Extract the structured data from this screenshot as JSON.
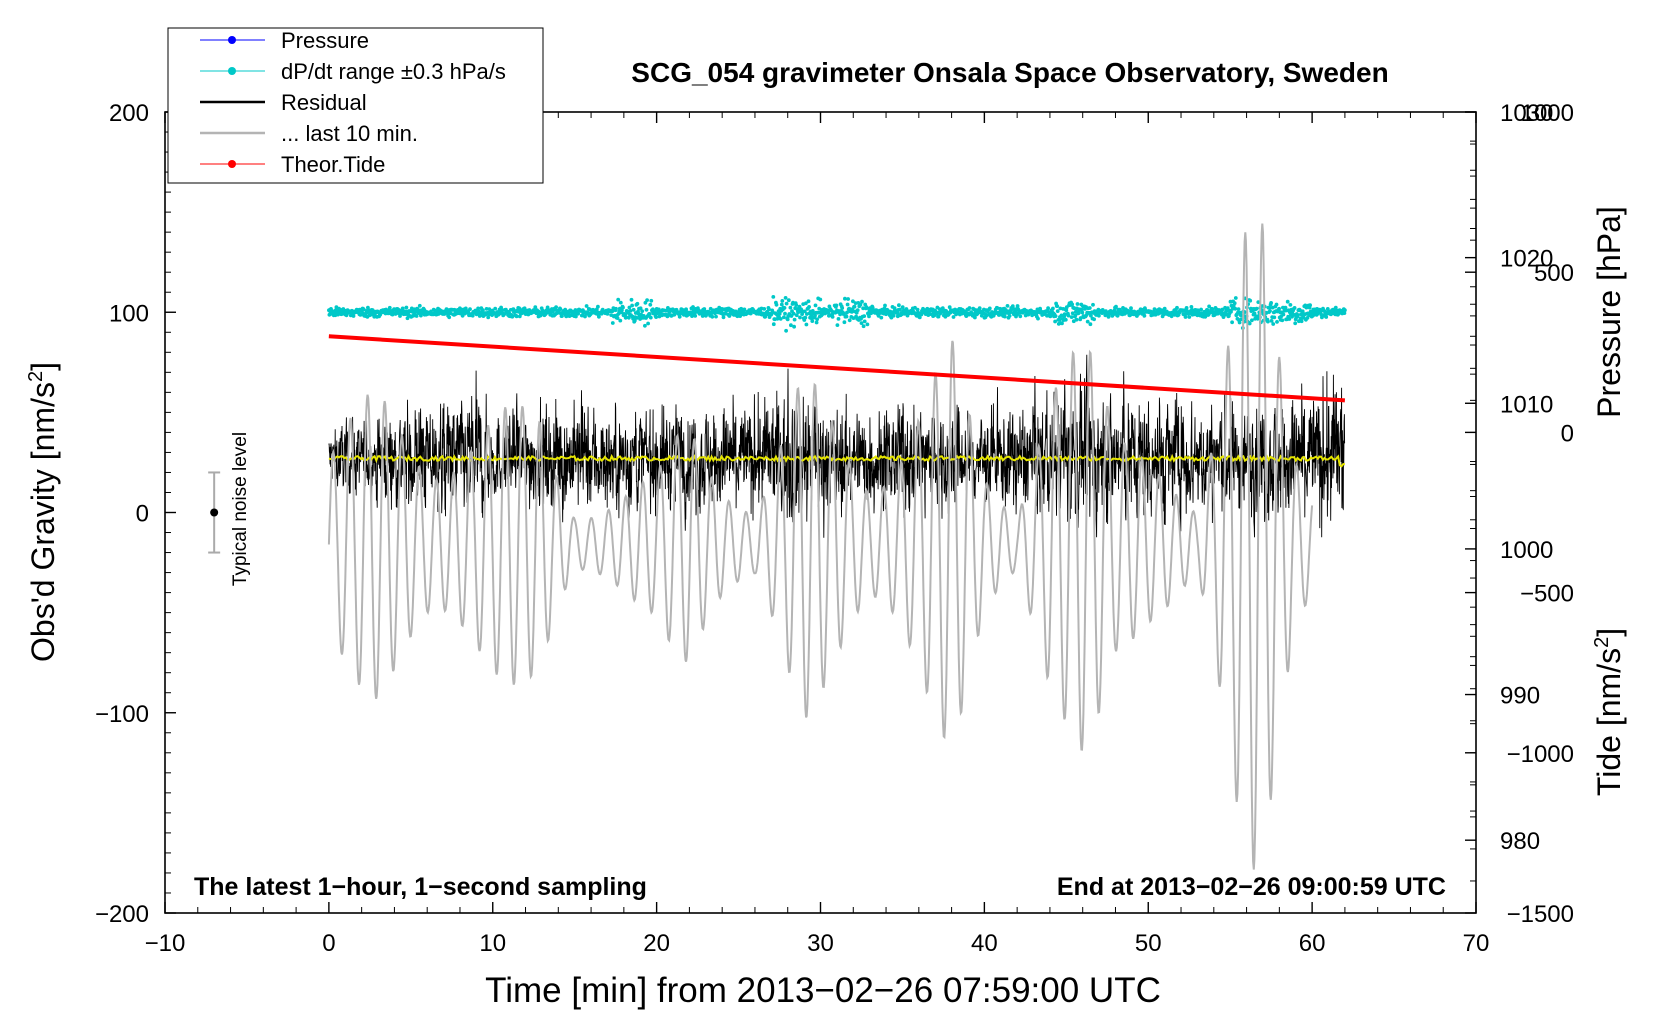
{
  "chart_data": {
    "type": "line",
    "title": "SCG_054 gravimeter Onsala Space Observatory, Sweden",
    "xlabel": "Time [min] from 2013−02−26 07:59:00 UTC",
    "ylabel_left_main": "Obs'd Gravity [nm/s",
    "ylabel_left_sup": "2",
    "ylabel_left_tail": "]",
    "ylabel_right_pressure": "Pressure [hPa]",
    "ylabel_right_tide_main": "Tide [nm/s",
    "ylabel_right_tide_sup": "2",
    "ylabel_right_tide_tail": "]",
    "xlim": [
      -10,
      70
    ],
    "ylim_left": [
      -200,
      200
    ],
    "ylim_pressure": [
      975,
      1030
    ],
    "ylim_tide": [
      -1500,
      1000
    ],
    "x_ticks": [
      "−10",
      "0",
      "10",
      "20",
      "30",
      "40",
      "50",
      "60",
      "70"
    ],
    "x_tick_values": [
      -10,
      0,
      10,
      20,
      30,
      40,
      50,
      60,
      70
    ],
    "y_left_ticks": [
      "200",
      "100",
      "0",
      "−100",
      "−200"
    ],
    "y_left_tick_values": [
      200,
      100,
      0,
      -100,
      -200
    ],
    "y_pressure_ticks": [
      "1030",
      "1020",
      "1010",
      "1000",
      "990",
      "980"
    ],
    "y_pressure_tick_values": [
      1030,
      1020,
      1010,
      1000,
      990,
      980
    ],
    "y_tide_ticks": [
      "1000",
      "500",
      "0",
      "−500",
      "−1000",
      "−1500"
    ],
    "y_tide_tick_values": [
      1000,
      500,
      0,
      -500,
      -1000,
      -1500
    ],
    "annotation_left": "The latest 1−hour, 1−second sampling",
    "annotation_right": "End at 2013−02−26 09:00:59 UTC",
    "noise_label": "Typical noise level",
    "noise_bar": {
      "x": -7,
      "center": 0,
      "low": -20,
      "high": 20
    },
    "legend": [
      {
        "label": "Pressure",
        "color": "#0000ff",
        "style": "line-dot"
      },
      {
        "label": "dP/dt range ±0.3 hPa/s",
        "color": "#00c8c8",
        "style": "line-dot"
      },
      {
        "label": "Residual",
        "color": "#000000",
        "style": "line"
      },
      {
        "label": "... last 10 min.",
        "color": "#b4b4b4",
        "style": "line"
      },
      {
        "label": "Theor.Tide",
        "color": "#ff0000",
        "style": "line-dot"
      }
    ],
    "series": [
      {
        "name": "dP/dt",
        "color": "#00c8c8",
        "axis": "left",
        "x_start": 0,
        "x_end": 62,
        "level": 100,
        "noise": 2,
        "bursts": [
          [
            18.5,
            1.2
          ],
          [
            28.5,
            1.5
          ],
          [
            32,
            1.2
          ],
          [
            45.5,
            1.2
          ],
          [
            57.5,
            2.5
          ]
        ]
      },
      {
        "name": "Residual",
        "color": "#000000",
        "axis": "left",
        "x_start": 0,
        "x_end": 62,
        "level": 27,
        "envelope": [
          [
            0,
            25
          ],
          [
            9,
            55
          ],
          [
            10,
            35
          ],
          [
            14,
            45
          ],
          [
            20,
            40
          ],
          [
            27,
            48
          ],
          [
            29,
            62
          ],
          [
            31,
            40
          ],
          [
            37,
            45
          ],
          [
            40,
            38
          ],
          [
            47,
            55
          ],
          [
            56,
            45
          ],
          [
            60,
            55
          ],
          [
            62,
            70
          ]
        ]
      },
      {
        "name": "Residual smoothed",
        "color": "#e6e600",
        "axis": "left",
        "x_start": 0,
        "x_end": 62,
        "level": 27
      },
      {
        "name": "Theor.Tide",
        "color": "#ff0000",
        "axis": "tide",
        "x_start": 0,
        "x_end": 62,
        "y_start": 300,
        "y_end": 100
      },
      {
        "name": "... last 10 min.",
        "color": "#b4b4b4",
        "axis": "tide",
        "x_start": 0,
        "x_end": 60,
        "center": -350,
        "amplitude_envelope": [
          [
            0,
            350
          ],
          [
            3,
            500
          ],
          [
            6,
            400
          ],
          [
            13,
            450
          ],
          [
            15,
            150
          ],
          [
            20,
            220
          ],
          [
            22,
            450
          ],
          [
            26,
            150
          ],
          [
            29,
            550
          ],
          [
            33,
            300
          ],
          [
            38,
            650
          ],
          [
            40,
            250
          ],
          [
            42,
            150
          ],
          [
            43,
            500
          ],
          [
            44,
            750
          ],
          [
            46,
            700
          ],
          [
            48,
            350
          ],
          [
            51,
            400
          ],
          [
            53,
            150
          ],
          [
            56,
            1000
          ],
          [
            57,
            1050
          ],
          [
            59,
            400
          ],
          [
            60,
            300
          ]
        ]
      }
    ]
  }
}
